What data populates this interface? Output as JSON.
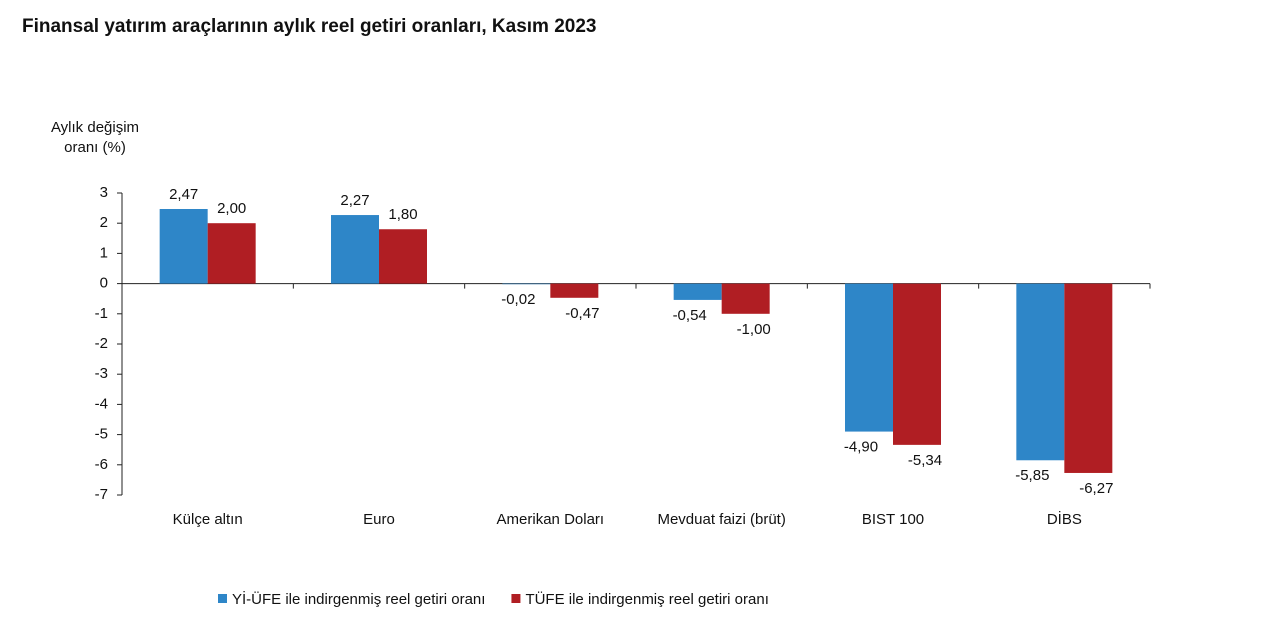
{
  "chart_data": {
    "type": "bar",
    "title": "Finansal yatırım araçlarının aylık reel getiri oranları, Kasım 2023",
    "y_label": "Aylık değişim oranı (%)",
    "categories": [
      "Külçe altın",
      "Euro",
      "Amerikan Doları",
      "Mevduat faizi (brüt)",
      "BIST 100",
      "DİBS"
    ],
    "series": [
      {
        "name": "Yİ-ÜFE ile indirgenmiş reel getiri oranı",
        "color": "#2e86c8",
        "values": [
          2.47,
          2.27,
          -0.02,
          -0.54,
          -4.9,
          -5.85
        ],
        "value_labels": [
          "2,47",
          "2,27",
          "-0,02",
          "-0,54",
          "-4,90",
          "-5,85"
        ]
      },
      {
        "name": "TÜFE ile indirgenmiş reel getiri oranı",
        "color": "#b01e23",
        "values": [
          2.0,
          1.8,
          -0.47,
          -1.0,
          -5.34,
          -6.27
        ],
        "value_labels": [
          "2,00",
          "1,80",
          "-0,47",
          "-1,00",
          "-5,34",
          "-6,27"
        ]
      }
    ],
    "ylim": [
      -7,
      3
    ],
    "yticks": [
      3,
      2,
      1,
      0,
      -1,
      -2,
      -3,
      -4,
      -5,
      -6,
      -7
    ]
  }
}
